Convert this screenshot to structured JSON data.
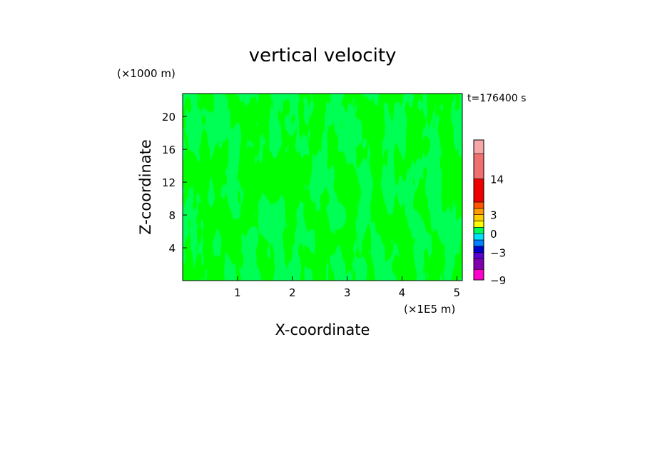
{
  "chart_data": {
    "type": "heatmap",
    "title": "vertical velocity",
    "xlabel": "X-coordinate",
    "ylabel": "Z-coordinate",
    "x_unit": "(×1E5 m)",
    "y_unit": "(×1000 m)",
    "time_label": "t=176400 s",
    "xlim": [
      0,
      5.1
    ],
    "ylim": [
      0,
      22.8
    ],
    "x_ticks": [
      1,
      2,
      3,
      4,
      5
    ],
    "y_ticks": [
      4,
      8,
      12,
      16,
      20
    ],
    "field_colors": {
      "negative": "#00ff55",
      "positive": "#ffff00"
    },
    "colorbar": {
      "levels": [
        -9,
        -7,
        -5,
        -3,
        -2,
        -1,
        0,
        1,
        2,
        3,
        4,
        8,
        14,
        18,
        21
      ],
      "colors": [
        "#ff00cc",
        "#8000b0",
        "#5a00d0",
        "#0000cc",
        "#0080ff",
        "#00e0ff",
        "#00ff55",
        "#ffff00",
        "#ffcc00",
        "#ff9900",
        "#ff5500",
        "#ee0000",
        "#f07070",
        "#f4a8a8"
      ],
      "tick_labels": [
        {
          "value": 14,
          "label": "14"
        },
        {
          "value": 3,
          "label": "3"
        },
        {
          "value": 0,
          "label": "0"
        },
        {
          "value": -3,
          "label": "−3"
        },
        {
          "value": -9,
          "label": "−9"
        }
      ]
    }
  }
}
